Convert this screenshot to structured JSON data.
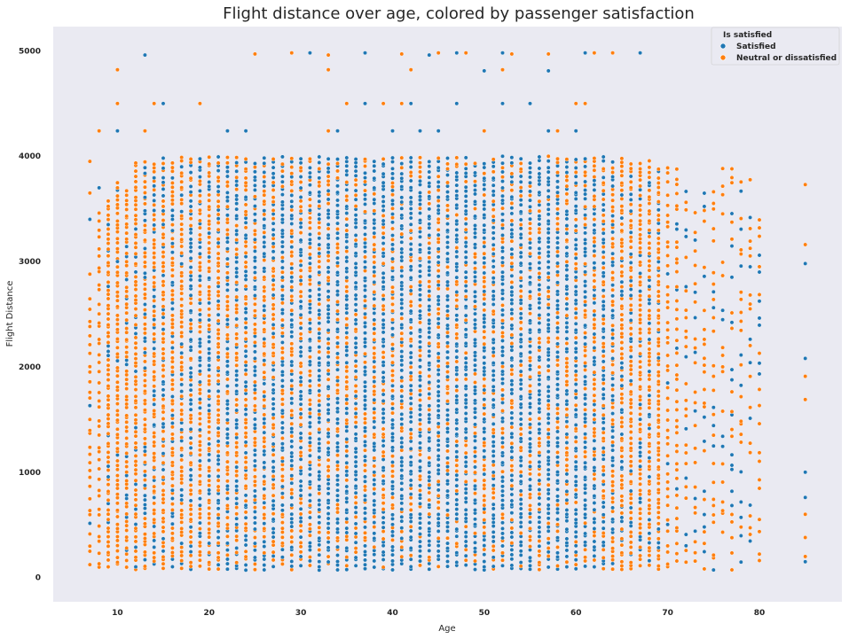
{
  "chart_data": {
    "type": "scatter",
    "title": "Flight distance over age, colored by passenger satisfaction",
    "xlabel": "Age",
    "ylabel": "Flight Distance",
    "xlim": [
      3,
      89
    ],
    "ylim": [
      -230,
      5230
    ],
    "xticks": [
      10,
      20,
      30,
      40,
      50,
      60,
      70,
      80
    ],
    "yticks": [
      0,
      1000,
      2000,
      3000,
      4000,
      5000
    ],
    "grid": false,
    "background_color": "#eaeaf2",
    "legend": {
      "title": "Is satisfied",
      "placement": "top-right",
      "entries": [
        {
          "name": "Satisfied",
          "color": "#1f77b4"
        },
        {
          "name": "Neutral or dissatisfied",
          "color": "#ff7f0e"
        }
      ]
    },
    "series": [
      {
        "name": "Satisfied",
        "color": "#1f77b4",
        "outlier_points": [
          [
            13,
            4960
          ],
          [
            31,
            4980
          ],
          [
            37,
            4980
          ],
          [
            44,
            4960
          ],
          [
            47,
            4980
          ],
          [
            52,
            4980
          ],
          [
            61,
            4980
          ],
          [
            67,
            4980
          ],
          [
            50,
            4810
          ],
          [
            57,
            4810
          ],
          [
            15,
            4500
          ],
          [
            37,
            4500
          ],
          [
            42,
            4500
          ],
          [
            47,
            4500
          ],
          [
            52,
            4500
          ],
          [
            55,
            4500
          ],
          [
            10,
            4240
          ],
          [
            22,
            4240
          ],
          [
            24,
            4240
          ],
          [
            34,
            4240
          ],
          [
            40,
            4240
          ],
          [
            43,
            4240
          ],
          [
            45,
            4240
          ],
          [
            60,
            4240
          ],
          [
            57,
            4240
          ],
          [
            7,
            3400
          ],
          [
            8,
            3700
          ],
          [
            10,
            3000
          ],
          [
            85,
            2980
          ],
          [
            85,
            2080
          ],
          [
            85,
            1000
          ],
          [
            85,
            760
          ],
          [
            85,
            150
          ]
        ]
      },
      {
        "name": "Neutral or dissatisfied",
        "color": "#ff7f0e",
        "outlier_points": [
          [
            25,
            4970
          ],
          [
            29,
            4980
          ],
          [
            33,
            4960
          ],
          [
            41,
            4970
          ],
          [
            45,
            4980
          ],
          [
            48,
            4980
          ],
          [
            53,
            4970
          ],
          [
            57,
            4970
          ],
          [
            62,
            4980
          ],
          [
            64,
            4980
          ],
          [
            10,
            4820
          ],
          [
            33,
            4820
          ],
          [
            42,
            4820
          ],
          [
            52,
            4820
          ],
          [
            10,
            4500
          ],
          [
            14,
            4500
          ],
          [
            19,
            4500
          ],
          [
            35,
            4500
          ],
          [
            39,
            4500
          ],
          [
            41,
            4500
          ],
          [
            60,
            4500
          ],
          [
            61,
            4500
          ],
          [
            8,
            4240
          ],
          [
            13,
            4240
          ],
          [
            33,
            4240
          ],
          [
            50,
            4240
          ],
          [
            58,
            4240
          ],
          [
            7,
            3950
          ],
          [
            7,
            3650
          ],
          [
            7,
            2880
          ],
          [
            85,
            3730
          ],
          [
            85,
            3160
          ],
          [
            85,
            1910
          ],
          [
            85,
            1690
          ],
          [
            85,
            600
          ],
          [
            85,
            380
          ],
          [
            85,
            200
          ]
        ]
      }
    ],
    "dense_columns": {
      "x": [
        7,
        8,
        9,
        10,
        11,
        12,
        13,
        14,
        15,
        16,
        17,
        18,
        19,
        20,
        21,
        22,
        23,
        24,
        25,
        26,
        27,
        28,
        29,
        30,
        31,
        32,
        33,
        34,
        35,
        36,
        37,
        38,
        39,
        40,
        41,
        42,
        43,
        44,
        45,
        46,
        47,
        48,
        49,
        50,
        51,
        52,
        53,
        54,
        55,
        56,
        57,
        58,
        59,
        60,
        61,
        62,
        63,
        64,
        65,
        66,
        67,
        68,
        69,
        70,
        71,
        72,
        73,
        74,
        75,
        76,
        77,
        78,
        79,
        80
      ],
      "y_min": 70,
      "y_max": [
        2700,
        3500,
        3600,
        3800,
        3700,
        3950,
        3950,
        3970,
        3990,
        3990,
        4000,
        4000,
        4000,
        4000,
        4000,
        4000,
        4000,
        4000,
        4000,
        4000,
        4000,
        4000,
        4000,
        4000,
        4000,
        4000,
        4000,
        4000,
        4000,
        4000,
        4000,
        4000,
        4000,
        4000,
        4000,
        4000,
        4000,
        4000,
        4000,
        4000,
        4000,
        4000,
        4000,
        4000,
        4000,
        4000,
        4000,
        4000,
        4000,
        4000,
        4000,
        4000,
        4000,
        4000,
        4000,
        4000,
        4000,
        4000,
        3990,
        3980,
        3980,
        3960,
        3940,
        3930,
        3900,
        3750,
        3500,
        3700,
        3700,
        3950,
        3950,
        3800,
        3900,
        3900
      ],
      "satisfied_share": [
        0.06,
        0.08,
        0.12,
        0.15,
        0.18,
        0.22,
        0.26,
        0.3,
        0.32,
        0.34,
        0.35,
        0.36,
        0.38,
        0.4,
        0.45,
        0.5,
        0.52,
        0.5,
        0.48,
        0.5,
        0.52,
        0.55,
        0.57,
        0.6,
        0.62,
        0.64,
        0.65,
        0.66,
        0.67,
        0.66,
        0.66,
        0.67,
        0.68,
        0.7,
        0.69,
        0.7,
        0.7,
        0.7,
        0.68,
        0.68,
        0.7,
        0.72,
        0.7,
        0.7,
        0.72,
        0.72,
        0.7,
        0.7,
        0.72,
        0.72,
        0.7,
        0.7,
        0.68,
        0.66,
        0.6,
        0.5,
        0.45,
        0.4,
        0.3,
        0.26,
        0.24,
        0.22,
        0.18,
        0.16,
        0.2,
        0.22,
        0.2,
        0.22,
        0.25,
        0.25,
        0.28,
        0.3,
        0.3,
        0.3
      ]
    }
  }
}
